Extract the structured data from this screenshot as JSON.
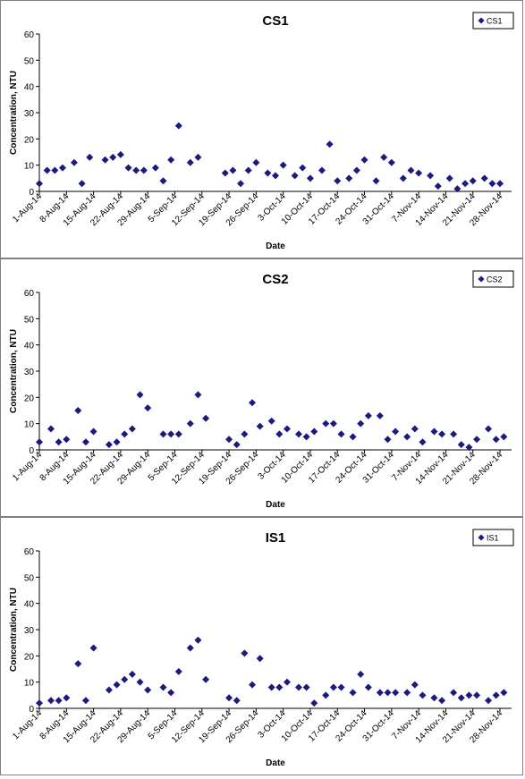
{
  "colors": {
    "marker": "#1a1a80",
    "axis": "#000000",
    "frame": "#808080"
  },
  "x_ticks": [
    "1-Aug-14",
    "8-Aug-14",
    "15-Aug-14",
    "22-Aug-14",
    "29-Aug-14",
    "5-Sep-14",
    "12-Sep-14",
    "19-Sep-14",
    "26-Sep-14",
    "3-Oct-14",
    "10-Oct-14",
    "17-Oct-14",
    "24-Oct-14",
    "31-Oct-14",
    "7-Nov-14",
    "14-Nov-14",
    "21-Nov-14",
    "28-Nov-14"
  ],
  "chart_data": [
    {
      "type": "scatter",
      "title": "CS1",
      "xlabel": "Date",
      "ylabel": "Concentration, NTU",
      "ylim": [
        0,
        60
      ],
      "y_ticks": [
        "0",
        "10",
        "20",
        "30",
        "40",
        "50",
        "60"
      ],
      "xlim": [
        "2014-08-01",
        "2014-12-01"
      ],
      "grid": false,
      "legend": {
        "position": "top-right",
        "entries": [
          "CS1"
        ]
      },
      "series": [
        {
          "name": "CS1",
          "x": [
            "2014-08-01",
            "2014-08-03",
            "2014-08-05",
            "2014-08-07",
            "2014-08-10",
            "2014-08-12",
            "2014-08-14",
            "2014-08-18",
            "2014-08-20",
            "2014-08-22",
            "2014-08-24",
            "2014-08-26",
            "2014-08-28",
            "2014-08-31",
            "2014-09-02",
            "2014-09-04",
            "2014-09-06",
            "2014-09-09",
            "2014-09-11",
            "2014-09-18",
            "2014-09-20",
            "2014-09-22",
            "2014-09-24",
            "2014-09-26",
            "2014-09-29",
            "2014-10-01",
            "2014-10-03",
            "2014-10-06",
            "2014-10-08",
            "2014-10-10",
            "2014-10-13",
            "2014-10-15",
            "2014-10-17",
            "2014-10-20",
            "2014-10-22",
            "2014-10-24",
            "2014-10-27",
            "2014-10-29",
            "2014-10-31",
            "2014-11-03",
            "2014-11-05",
            "2014-11-07",
            "2014-11-10",
            "2014-11-12",
            "2014-11-15",
            "2014-11-17",
            "2014-11-19",
            "2014-11-21",
            "2014-11-24",
            "2014-11-26",
            "2014-11-28"
          ],
          "y": [
            3,
            8,
            8,
            9,
            11,
            3,
            13,
            12,
            13,
            14,
            9,
            8,
            8,
            9,
            4,
            12,
            25,
            11,
            13,
            7,
            8,
            3,
            8,
            11,
            7,
            6,
            10,
            6,
            9,
            5,
            8,
            18,
            4,
            5,
            8,
            12,
            4,
            13,
            11,
            5,
            8,
            7,
            6,
            2,
            5,
            1,
            3,
            4,
            5,
            3,
            3
          ]
        }
      ]
    },
    {
      "type": "scatter",
      "title": "CS2",
      "xlabel": "Date",
      "ylabel": "Concentration, NTU",
      "ylim": [
        0,
        60
      ],
      "y_ticks": [
        "0",
        "10",
        "20",
        "30",
        "40",
        "50",
        "60"
      ],
      "xlim": [
        "2014-08-01",
        "2014-12-01"
      ],
      "grid": false,
      "legend": {
        "position": "top-right",
        "entries": [
          "CS2"
        ]
      },
      "series": [
        {
          "name": "CS2",
          "x": [
            "2014-08-01",
            "2014-08-04",
            "2014-08-06",
            "2014-08-08",
            "2014-08-11",
            "2014-08-13",
            "2014-08-15",
            "2014-08-19",
            "2014-08-21",
            "2014-08-23",
            "2014-08-25",
            "2014-08-27",
            "2014-08-29",
            "2014-09-02",
            "2014-09-04",
            "2014-09-06",
            "2014-09-09",
            "2014-09-11",
            "2014-09-13",
            "2014-09-19",
            "2014-09-21",
            "2014-09-23",
            "2014-09-25",
            "2014-09-27",
            "2014-09-30",
            "2014-10-02",
            "2014-10-04",
            "2014-10-07",
            "2014-10-09",
            "2014-10-11",
            "2014-10-14",
            "2014-10-16",
            "2014-10-18",
            "2014-10-21",
            "2014-10-23",
            "2014-10-25",
            "2014-10-28",
            "2014-10-30",
            "2014-11-01",
            "2014-11-04",
            "2014-11-06",
            "2014-11-08",
            "2014-11-11",
            "2014-11-13",
            "2014-11-16",
            "2014-11-18",
            "2014-11-20",
            "2014-11-22",
            "2014-11-25",
            "2014-11-27",
            "2014-11-29"
          ],
          "y": [
            3,
            8,
            3,
            4,
            15,
            3,
            7,
            2,
            3,
            6,
            8,
            21,
            16,
            6,
            6,
            6,
            10,
            21,
            12,
            4,
            2,
            6,
            18,
            9,
            11,
            6,
            8,
            6,
            5,
            7,
            10,
            10,
            6,
            5,
            10,
            13,
            13,
            4,
            7,
            5,
            8,
            3,
            7,
            6,
            6,
            2,
            1,
            4,
            8,
            4,
            5
          ]
        }
      ]
    },
    {
      "type": "scatter",
      "title": "IS1",
      "xlabel": "Date",
      "ylabel": "Concentration, NTU",
      "ylim": [
        0,
        60
      ],
      "y_ticks": [
        "0",
        "10",
        "20",
        "30",
        "40",
        "50",
        "60"
      ],
      "xlim": [
        "2014-08-01",
        "2014-12-01"
      ],
      "grid": false,
      "legend": {
        "position": "top-right",
        "entries": [
          "IS1"
        ]
      },
      "series": [
        {
          "name": "IS1",
          "x": [
            "2014-08-01",
            "2014-08-04",
            "2014-08-06",
            "2014-08-08",
            "2014-08-11",
            "2014-08-13",
            "2014-08-15",
            "2014-08-19",
            "2014-08-21",
            "2014-08-23",
            "2014-08-25",
            "2014-08-27",
            "2014-08-29",
            "2014-09-02",
            "2014-09-04",
            "2014-09-06",
            "2014-09-09",
            "2014-09-11",
            "2014-09-13",
            "2014-09-19",
            "2014-09-21",
            "2014-09-23",
            "2014-09-25",
            "2014-09-27",
            "2014-09-30",
            "2014-10-02",
            "2014-10-04",
            "2014-10-07",
            "2014-10-09",
            "2014-10-11",
            "2014-10-14",
            "2014-10-16",
            "2014-10-18",
            "2014-10-21",
            "2014-10-23",
            "2014-10-25",
            "2014-10-28",
            "2014-10-30",
            "2014-11-01",
            "2014-11-04",
            "2014-11-06",
            "2014-11-08",
            "2014-11-11",
            "2014-11-13",
            "2014-11-16",
            "2014-11-18",
            "2014-11-20",
            "2014-11-22",
            "2014-11-25",
            "2014-11-27",
            "2014-11-29"
          ],
          "y": [
            2,
            3,
            3,
            4,
            17,
            3,
            23,
            7,
            9,
            11,
            13,
            10,
            7,
            8,
            6,
            14,
            23,
            26,
            11,
            4,
            3,
            21,
            9,
            19,
            8,
            8,
            10,
            8,
            8,
            2,
            5,
            8,
            8,
            6,
            13,
            8,
            6,
            6,
            6,
            6,
            9,
            5,
            4,
            3,
            6,
            4,
            5,
            5,
            3,
            5,
            6
          ]
        }
      ]
    }
  ]
}
